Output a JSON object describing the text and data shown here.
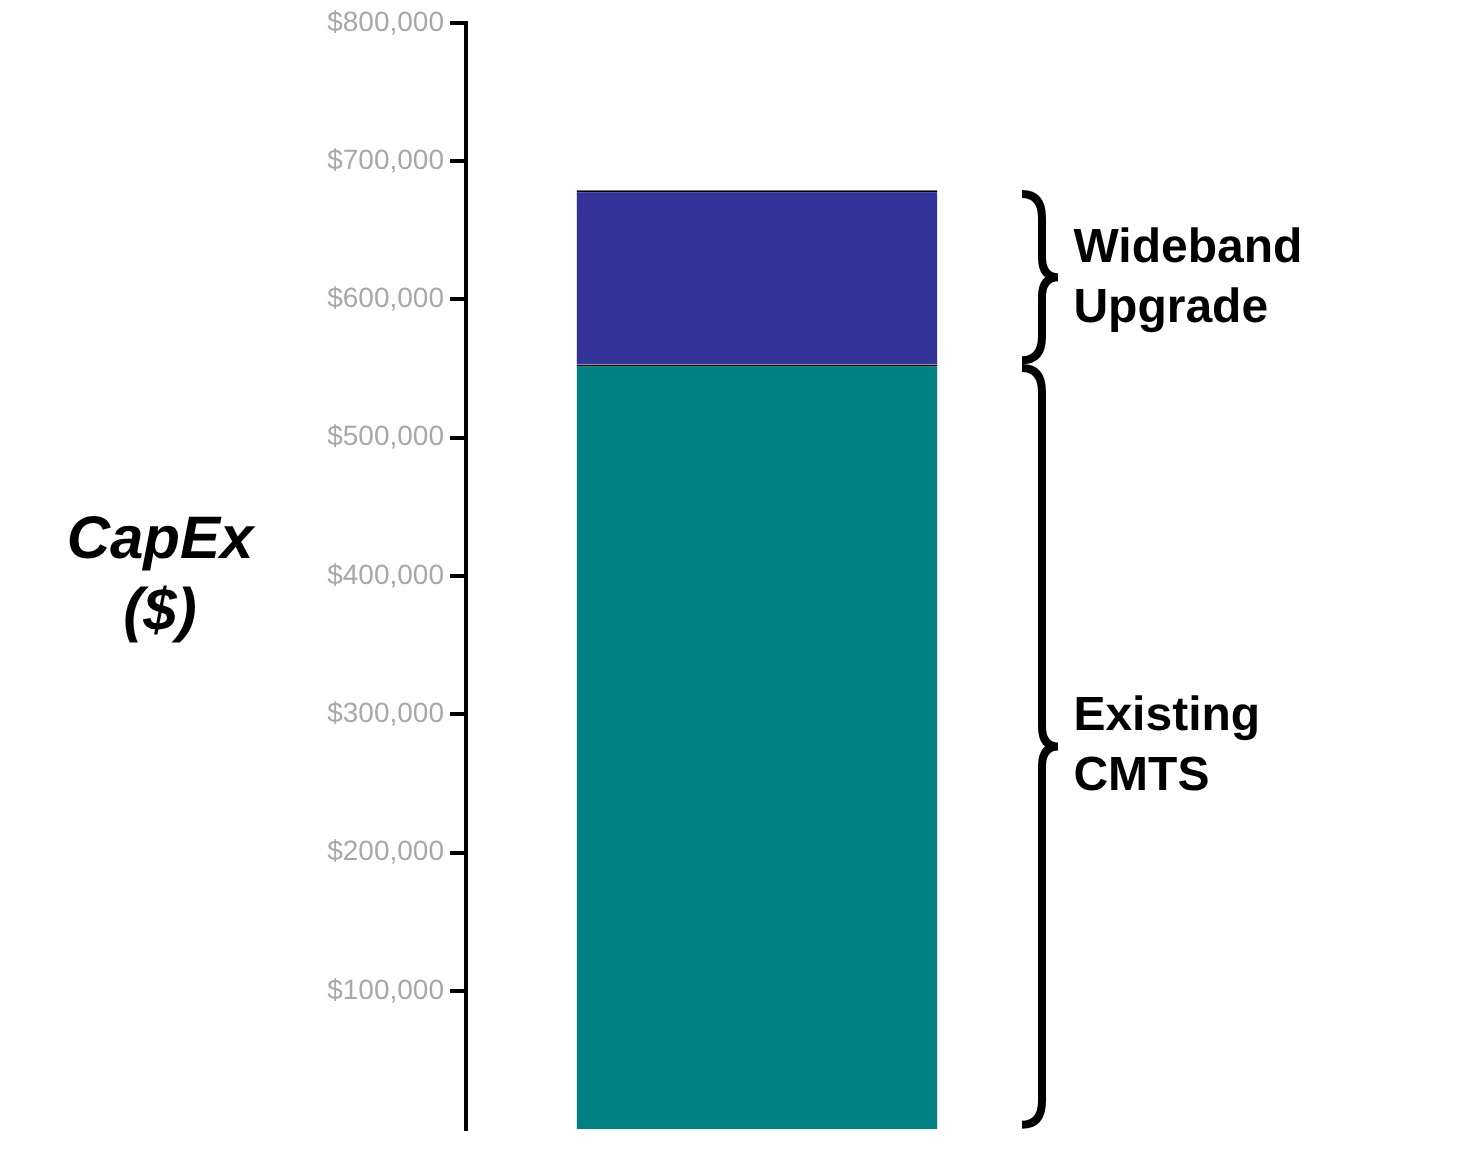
{
  "chart_data": {
    "type": "bar",
    "ylabel": "CapEx ($)",
    "categories": [
      null
    ],
    "stacked": true,
    "series": [
      {
        "name": "Existing CMTS",
        "color": "#008080",
        "values": [
          553000
        ]
      },
      {
        "name": "Wideband Upgrade",
        "color": "#333399",
        "values": [
          126000
        ]
      }
    ],
    "ylim": [
      0,
      800000
    ],
    "yticks": [
      {
        "value": 100000,
        "label": "$100,000"
      },
      {
        "value": 200000,
        "label": "$200,000"
      },
      {
        "value": 300000,
        "label": "$300,000"
      },
      {
        "value": 400000,
        "label": "$400,000"
      },
      {
        "value": 500000,
        "label": "$500,000"
      },
      {
        "value": 600000,
        "label": "$600,000"
      },
      {
        "value": 700000,
        "label": "$700,000"
      },
      {
        "value": 800000,
        "label": "$800,000"
      }
    ],
    "grid": false,
    "legend": false,
    "tick_labels": "y"
  }
}
